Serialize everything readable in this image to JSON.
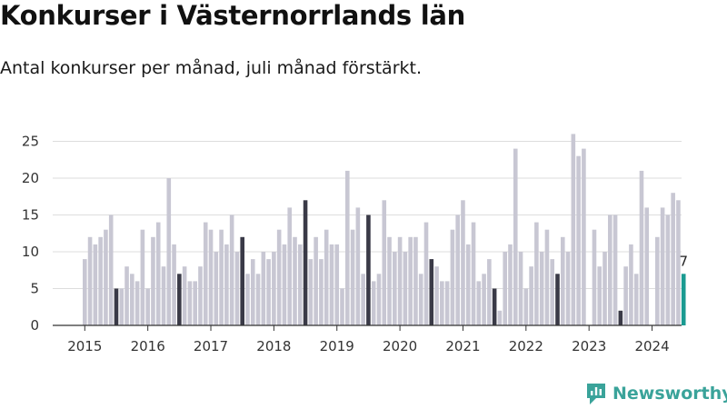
{
  "title": "Konkurser i Västernorrlands län",
  "subtitle": "Antal konkurser per månad, juli månad förstärkt.",
  "brand": {
    "name": "Newsworthy",
    "icon": "newsworthy-logo-icon"
  },
  "colors": {
    "bar": "#c8c7d3",
    "july": "#3a3a47",
    "latest": "#1a9a91",
    "grid": "#dddddd",
    "axis": "#333333",
    "brand": "#3aa39a"
  },
  "chart_data": {
    "type": "bar",
    "title": "Konkurser i Västernorrlands län",
    "subtitle": "Antal konkurser per månad, juli månad förstärkt.",
    "start_month": "2015-01",
    "highlight": "juli",
    "ylim": [
      0,
      27
    ],
    "yticks": [
      0,
      5,
      10,
      15,
      20,
      25
    ],
    "year_labels": [
      "2015",
      "2016",
      "2017",
      "2018",
      "2019",
      "2020",
      "2021",
      "2022",
      "2023",
      "2024"
    ],
    "grid": true,
    "last_value_label": "7",
    "values": [
      9,
      12,
      11,
      12,
      13,
      15,
      5,
      5,
      8,
      7,
      6,
      13,
      5,
      12,
      14,
      8,
      20,
      11,
      7,
      8,
      6,
      6,
      8,
      14,
      13,
      10,
      13,
      11,
      15,
      10,
      12,
      7,
      9,
      7,
      10,
      9,
      10,
      13,
      11,
      16,
      12,
      11,
      17,
      9,
      12,
      9,
      13,
      11,
      11,
      5,
      21,
      13,
      16,
      7,
      15,
      6,
      7,
      17,
      12,
      10,
      12,
      10,
      12,
      12,
      7,
      14,
      9,
      8,
      6,
      6,
      13,
      15,
      17,
      11,
      14,
      6,
      7,
      9,
      5,
      2,
      10,
      11,
      24,
      10,
      5,
      8,
      14,
      10,
      13,
      9,
      7,
      12,
      10,
      26,
      23,
      24,
      0,
      13,
      8,
      10,
      15,
      15,
      2,
      8,
      11,
      7,
      21,
      16,
      0,
      12,
      16,
      15,
      18,
      17,
      7
    ]
  }
}
